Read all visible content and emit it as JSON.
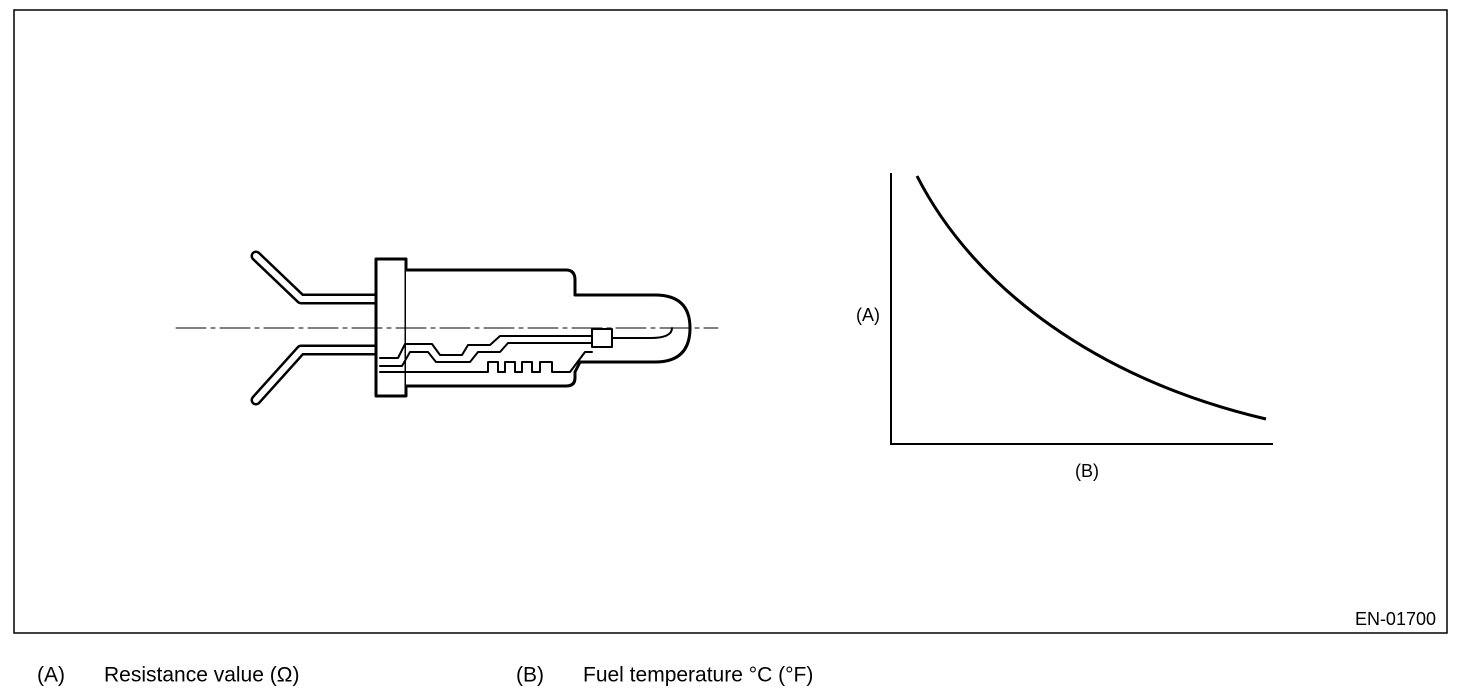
{
  "figure": {
    "graph": {
      "y_axis_label": "(A)",
      "x_axis_label": "(B)"
    },
    "code": "EN-01700"
  },
  "legend": [
    {
      "key": "(A)",
      "text": "Resistance value (Ω)"
    },
    {
      "key": "(B)",
      "text": "Fuel temperature °C (°F)"
    }
  ]
}
